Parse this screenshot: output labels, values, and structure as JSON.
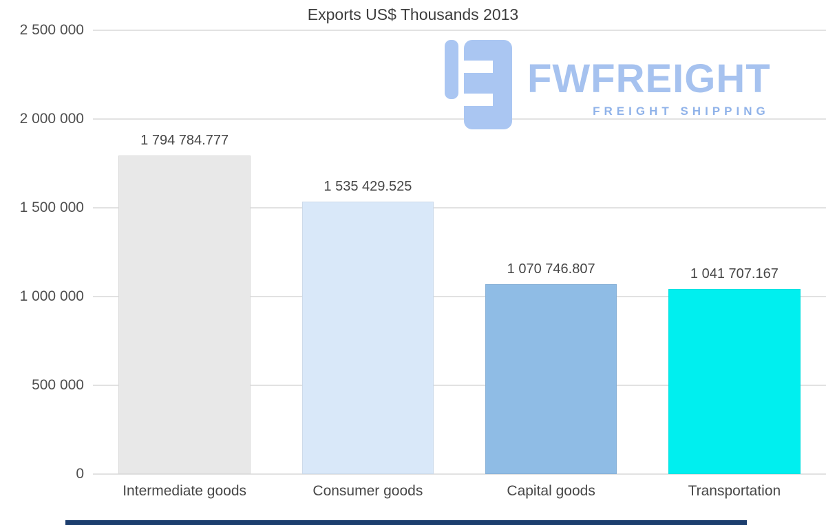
{
  "chart_data": {
    "type": "bar",
    "title": "Exports US$ Thousands 2013",
    "categories": [
      "Intermediate goods",
      "Consumer goods",
      "Capital goods",
      "Transportation"
    ],
    "values": [
      1794784.777,
      1535429.525,
      1070746.807,
      1041707.167
    ],
    "value_labels": [
      "1 794 784.777",
      "1 535 429.525",
      "1 070 746.807",
      "1 041 707.167"
    ],
    "bar_colors": [
      "#e8e8e8",
      "#d9e8f9",
      "#8fbce5",
      "#00efef"
    ],
    "ylim": [
      0,
      2500000
    ],
    "ytick_values": [
      2500000,
      2000000,
      1500000,
      1000000,
      500000,
      0
    ],
    "ytick_labels": [
      "2 500 000",
      "2 000 000",
      "1 500 000",
      "1 000 000",
      "500 000",
      "0"
    ],
    "grid": true,
    "legend": "none",
    "xlabel": "",
    "ylabel": ""
  },
  "watermark": {
    "brand": "FWFREIGHT",
    "tagline": "FREIGHT SHIPPING",
    "color": "#a6c2ef"
  },
  "colors": {
    "background": "#ffffff",
    "title_text": "#3d3d3d",
    "axis_text": "#4f4f4f",
    "gridline": "#e2e2e2",
    "bottom_bar": "#1c3e6e"
  }
}
